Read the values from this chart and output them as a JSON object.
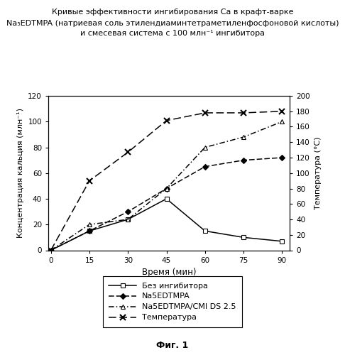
{
  "title_line1": "Кривые эффективности ингибирования Ca в крафт-варке",
  "title_line2": "Na₅EDTMPA (натриевая соль этилендиаминтетраметиленфосфоновой кислоты)",
  "title_line3": "и смесевая система с 100 млн⁻¹ ингибитора",
  "xlabel": "Время (мин)",
  "ylabel_left": "Концентрация кальция (млн⁻¹)",
  "ylabel_right": "Температура (°C)",
  "time": [
    0,
    15,
    30,
    45,
    60,
    75,
    90
  ],
  "no_inhibitor": [
    0,
    15,
    24,
    40,
    15,
    10,
    7
  ],
  "na5edtmpa": [
    0,
    15,
    30,
    48,
    65,
    70,
    72
  ],
  "na5edtmpa_cmi": [
    0,
    20,
    24,
    48,
    80,
    88,
    100
  ],
  "temperature_degC": [
    0,
    90,
    127,
    168,
    178,
    178,
    180
  ],
  "ylim_left": [
    0,
    120
  ],
  "ylim_right": [
    0,
    200
  ],
  "xticks": [
    0,
    15,
    30,
    45,
    60,
    75,
    90
  ],
  "yticks_left": [
    0,
    20,
    40,
    60,
    80,
    100,
    120
  ],
  "yticks_right": [
    0,
    20,
    40,
    60,
    80,
    100,
    120,
    140,
    160,
    180,
    200
  ],
  "legend_label_1": "Без ингибитора",
  "legend_label_2": "Na5EDTMPA",
  "legend_label_3": "Na5EDTMPA/CMI DS 2.5",
  "legend_label_4": "Температура",
  "fig_label": "Фиг. 1",
  "background_color": "#ffffff"
}
